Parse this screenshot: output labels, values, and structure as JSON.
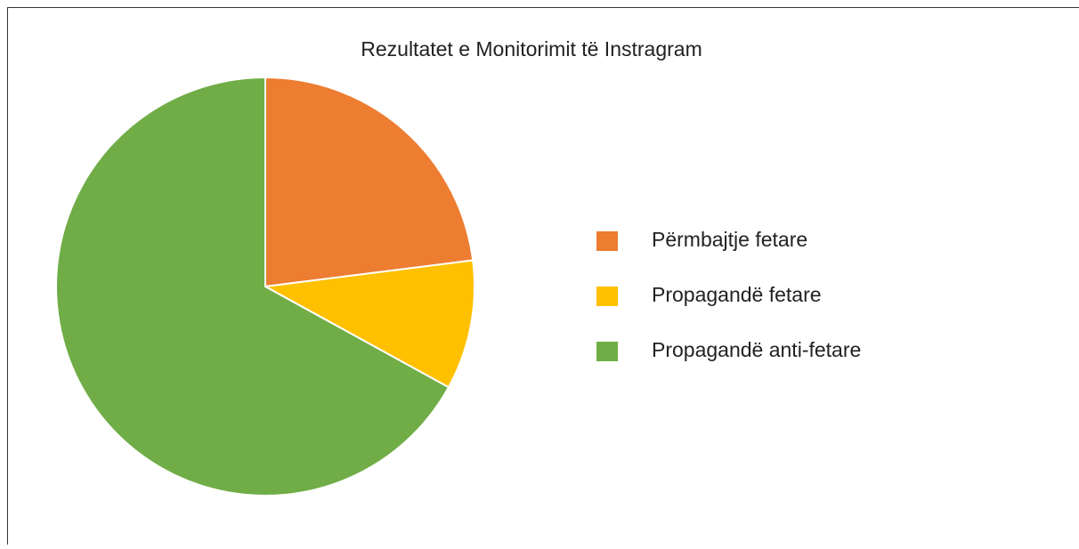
{
  "chart_data": {
    "type": "pie",
    "title": "Rezultatet e Monitorimit të Instragram",
    "categories": [
      "Përmbajtje fetare",
      "Propagandë fetare",
      "Propagandë anti-fetare"
    ],
    "values": [
      23,
      10,
      67
    ],
    "colors": [
      "#ed7d31",
      "#ffc000",
      "#70ad47"
    ],
    "legend": "right"
  }
}
